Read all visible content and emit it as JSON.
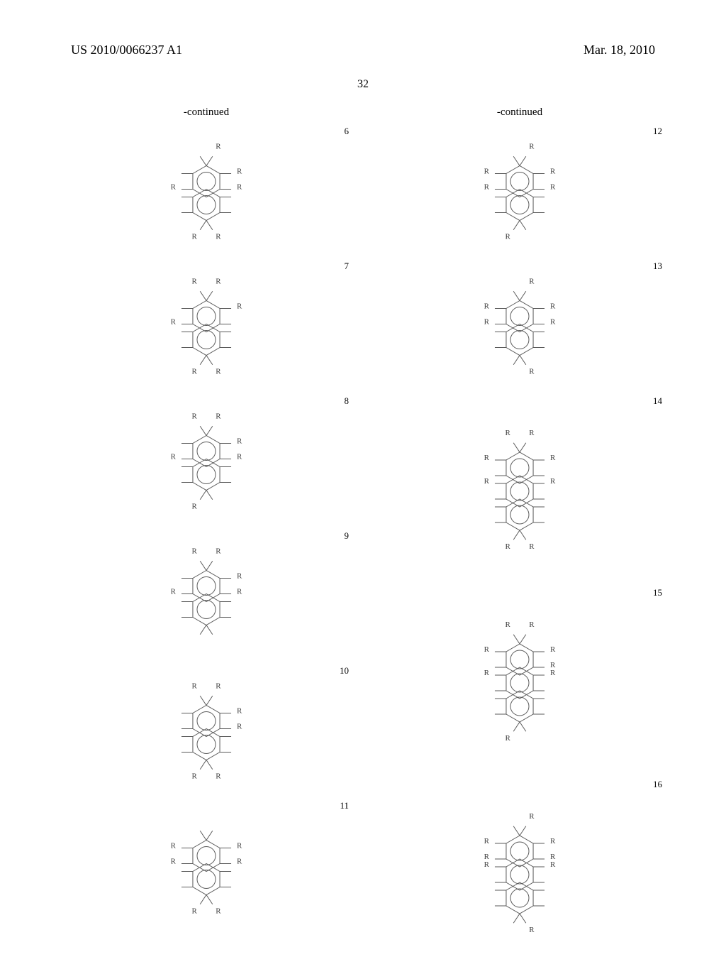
{
  "header": {
    "patent_id": "US 2010/0066237 A1",
    "date": "Mar. 18, 2010"
  },
  "page_number": "32",
  "continued_label": "-continued",
  "columns": {
    "left": [
      {
        "num": "6",
        "rings": 2,
        "r_positions": [
          "tr",
          "r1",
          "r2",
          "bl",
          "br",
          "l2"
        ]
      },
      {
        "num": "7",
        "rings": 2,
        "r_positions": [
          "tl",
          "tr",
          "r1",
          "l2",
          "bl",
          "br"
        ]
      },
      {
        "num": "8",
        "rings": 2,
        "r_positions": [
          "tl",
          "tr",
          "r1",
          "r2",
          "l2",
          "bl"
        ]
      },
      {
        "num": "9",
        "rings": 2,
        "r_positions": [
          "tl",
          "tr",
          "r1",
          "r2",
          "l2"
        ]
      },
      {
        "num": "10",
        "rings": 2,
        "r_positions": [
          "tl",
          "tr",
          "r1",
          "r2",
          "bl",
          "br"
        ]
      },
      {
        "num": "11",
        "rings": 2,
        "r_positions": [
          "r1",
          "l1",
          "r2",
          "l2",
          "bl",
          "br"
        ]
      }
    ],
    "right": [
      {
        "num": "12",
        "rings": 2,
        "r_positions": [
          "tr",
          "r1",
          "l1",
          "r2",
          "l2",
          "bl"
        ]
      },
      {
        "num": "13",
        "rings": 2,
        "r_positions": [
          "tr",
          "r1",
          "l1",
          "r2",
          "l2",
          "br"
        ]
      },
      {
        "num": "14",
        "rings": 3,
        "r_positions": [
          "tl",
          "tr",
          "r1",
          "l1",
          "r3",
          "l3",
          "bl",
          "br"
        ]
      },
      {
        "num": "15",
        "rings": 3,
        "r_positions": [
          "tl",
          "tr",
          "r1",
          "l1",
          "r2",
          "r3",
          "l3",
          "bl"
        ]
      },
      {
        "num": "16",
        "rings": 3,
        "r_positions": [
          "tr",
          "r1",
          "l1",
          "r2",
          "l2",
          "r3",
          "l3",
          "br"
        ]
      }
    ]
  },
  "style": {
    "stroke_color": "#5a5a5a",
    "stroke_width": 1.0,
    "r_label": "R",
    "r_fontsize": 11,
    "hex_radius": 22,
    "ring_inner_radius": 13,
    "bond_len": 16,
    "svg_bg": "#ffffff"
  }
}
